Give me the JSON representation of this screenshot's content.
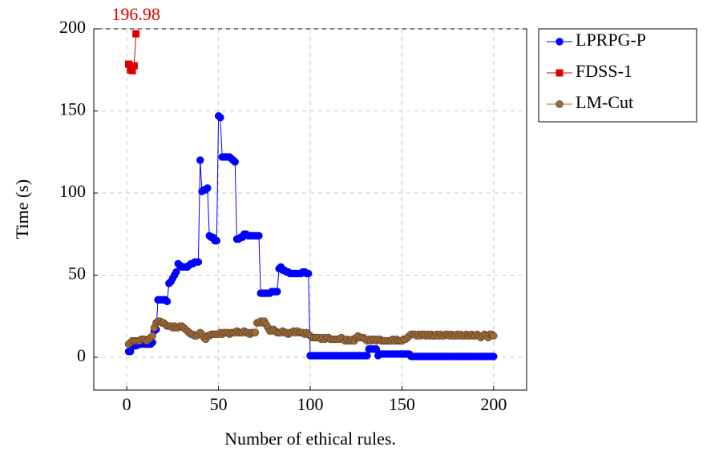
{
  "chart_data": {
    "type": "line",
    "xlabel": "Number of ethical rules.",
    "ylabel": "Time (s)",
    "xlim": [
      -18,
      218
    ],
    "ylim": [
      -20,
      200
    ],
    "xticks": [
      0,
      50,
      100,
      150,
      200
    ],
    "yticks": [
      0,
      50,
      100,
      150,
      200
    ],
    "grid": true,
    "legend": "outside right",
    "series": [
      {
        "name": "LPRPG-P",
        "color": "#0000ff",
        "marker": "circle",
        "x": [
          1,
          2,
          3,
          4,
          5,
          6,
          7,
          8,
          9,
          10,
          11,
          12,
          13,
          14,
          15,
          16,
          17,
          18,
          19,
          20,
          21,
          22,
          23,
          24,
          25,
          26,
          27,
          28,
          29,
          30,
          31,
          32,
          33,
          34,
          35,
          36,
          37,
          38,
          39,
          40,
          41,
          42,
          43,
          44,
          45,
          46,
          47,
          48,
          49,
          50,
          51,
          52,
          53,
          54,
          55,
          56,
          57,
          58,
          59,
          60,
          61,
          62,
          63,
          64,
          65,
          66,
          67,
          68,
          69,
          70,
          71,
          72,
          73,
          74,
          75,
          76,
          77,
          78,
          79,
          80,
          81,
          82,
          83,
          84,
          85,
          86,
          87,
          88,
          89,
          90,
          91,
          92,
          93,
          94,
          95,
          96,
          97,
          98,
          99,
          100,
          101,
          102,
          103,
          104,
          105,
          106,
          107,
          108,
          109,
          110,
          111,
          112,
          113,
          114,
          115,
          116,
          117,
          118,
          119,
          120,
          121,
          122,
          123,
          124,
          125,
          126,
          127,
          128,
          129,
          130,
          131,
          132,
          133,
          134,
          135,
          136,
          137,
          138,
          139,
          140,
          141,
          142,
          143,
          144,
          145,
          146,
          147,
          148,
          149,
          150,
          151,
          152,
          153,
          154,
          155,
          156,
          157,
          158,
          159,
          160,
          161,
          162,
          163,
          164,
          165,
          166,
          167,
          168,
          169,
          170,
          171,
          172,
          173,
          174,
          175,
          176,
          177,
          178,
          179,
          180,
          181,
          182,
          183,
          184,
          185,
          186,
          187,
          188,
          189,
          190,
          191,
          192,
          193,
          194,
          195,
          196,
          197,
          198,
          199,
          200
        ],
        "values": [
          3.5,
          3.5,
          7,
          7,
          7,
          7.5,
          8,
          8,
          8,
          8,
          8,
          8,
          8,
          9,
          16,
          17,
          35,
          35,
          35,
          35,
          35,
          34,
          45,
          46,
          48,
          50,
          52,
          57,
          56,
          55,
          55,
          55,
          55,
          56,
          57,
          57,
          58,
          58,
          58,
          120,
          101,
          102,
          102,
          103,
          74,
          73,
          73,
          71,
          71,
          147,
          146,
          122,
          122,
          122,
          122,
          122,
          121,
          120,
          119,
          72,
          72,
          73,
          73,
          75,
          75,
          74,
          74,
          74,
          74,
          74,
          74,
          74,
          39,
          39,
          39,
          39,
          39,
          39,
          40,
          40,
          40,
          40,
          54,
          55,
          53,
          53,
          52,
          52,
          51,
          51,
          51,
          51,
          51,
          51,
          51,
          52,
          52,
          51,
          51,
          1,
          1,
          1,
          1,
          1,
          1,
          1,
          1,
          1,
          1,
          1,
          1,
          1,
          1,
          1,
          1,
          1,
          1,
          1,
          1,
          1,
          1,
          1,
          1,
          1,
          1,
          1,
          1,
          1,
          1,
          1,
          1,
          5,
          5,
          5,
          5,
          5,
          1,
          2,
          2,
          2,
          2,
          2,
          2,
          2,
          2,
          2,
          2,
          2,
          2,
          2,
          2,
          2,
          2,
          2,
          0.5,
          0.5,
          0.5,
          0.5,
          0.5,
          0.5,
          0.5,
          0.5,
          0.5,
          0.5,
          0.5,
          0.5,
          0.5,
          0.5,
          0.5,
          0.5,
          0.5,
          0.5,
          0.5,
          0.5,
          0.5,
          0.5,
          0.5,
          0.5,
          0.5,
          0.5,
          0.5,
          0.5,
          0.5,
          0.5,
          0.5,
          0.5,
          0.5,
          0.5,
          0.5,
          0.5,
          0.5,
          0.5,
          0.5,
          0.5,
          0.5,
          0.5,
          0.5,
          0.5,
          0.5,
          0.5
        ]
      },
      {
        "name": "FDSS-1",
        "color": "#dd0000",
        "marker": "square",
        "x": [
          1,
          2,
          3,
          4,
          5
        ],
        "values": [
          178.5,
          175,
          174.5,
          177.5,
          196.98
        ]
      },
      {
        "name": "LM-Cut",
        "color": "#9c6b3c",
        "marker": "circle",
        "x": [
          1,
          2,
          3,
          4,
          5,
          6,
          7,
          8,
          9,
          10,
          11,
          12,
          13,
          14,
          15,
          16,
          17,
          18,
          19,
          20,
          21,
          22,
          23,
          24,
          25,
          26,
          27,
          28,
          29,
          30,
          31,
          32,
          33,
          34,
          35,
          36,
          37,
          38,
          39,
          40,
          41,
          42,
          43,
          44,
          45,
          46,
          47,
          48,
          49,
          50,
          51,
          52,
          53,
          54,
          55,
          56,
          57,
          58,
          59,
          60,
          61,
          62,
          63,
          64,
          65,
          66,
          67,
          68,
          69,
          70,
          71,
          72,
          73,
          74,
          75,
          76,
          77,
          78,
          79,
          80,
          81,
          82,
          83,
          84,
          85,
          86,
          87,
          88,
          89,
          90,
          91,
          92,
          93,
          94,
          95,
          96,
          97,
          98,
          99,
          100,
          101,
          102,
          103,
          104,
          105,
          106,
          107,
          108,
          109,
          110,
          111,
          112,
          113,
          114,
          115,
          116,
          117,
          118,
          119,
          120,
          121,
          122,
          123,
          124,
          125,
          126,
          127,
          128,
          129,
          130,
          131,
          132,
          133,
          134,
          135,
          136,
          137,
          138,
          139,
          140,
          141,
          142,
          143,
          144,
          145,
          146,
          147,
          148,
          149,
          150,
          151,
          152,
          153,
          154,
          155,
          156,
          157,
          158,
          159,
          160,
          161,
          162,
          163,
          164,
          165,
          166,
          167,
          168,
          169,
          170,
          171,
          172,
          173,
          174,
          175,
          176,
          177,
          178,
          179,
          180,
          181,
          182,
          183,
          184,
          185,
          186,
          187,
          188,
          189,
          190,
          191,
          192,
          193,
          194,
          195,
          196,
          197,
          198,
          199,
          200
        ],
        "values": [
          8,
          9,
          10,
          10,
          10,
          10,
          10,
          11,
          11,
          11,
          10,
          11,
          12,
          13,
          18,
          21,
          22,
          22,
          21,
          21,
          20,
          19,
          19,
          19,
          18,
          19,
          18,
          18,
          19,
          19,
          18,
          17,
          16,
          15,
          14,
          14,
          13,
          13,
          14,
          15,
          14,
          12,
          11,
          13,
          13,
          14,
          14,
          14,
          14,
          14,
          15,
          14,
          15,
          15,
          15,
          14,
          15,
          15,
          15,
          16,
          15,
          15,
          15,
          16,
          15,
          15,
          14,
          15,
          15,
          15,
          21,
          21,
          22,
          21,
          22,
          20,
          18,
          16,
          16,
          17,
          16,
          15,
          15,
          15,
          16,
          15,
          15,
          14,
          15,
          15,
          16,
          15,
          16,
          15,
          15,
          15,
          14,
          15,
          14,
          13,
          12,
          12,
          12,
          12,
          12,
          11,
          12,
          11,
          12,
          12,
          11,
          11,
          11,
          11,
          11,
          11,
          12,
          11,
          10,
          11,
          10,
          10,
          11,
          10,
          12,
          13,
          12,
          12,
          12,
          11,
          10,
          11,
          10,
          11,
          11,
          10,
          11,
          11,
          10,
          10,
          10,
          10,
          10,
          10,
          11,
          10,
          11,
          10,
          10,
          10,
          11,
          11,
          12,
          13,
          14,
          14,
          14,
          13,
          14,
          13,
          14,
          14,
          13,
          14,
          13,
          14,
          13,
          13,
          14,
          13,
          14,
          13,
          13,
          14,
          14,
          13,
          14,
          13,
          13,
          14,
          13,
          14,
          13,
          13,
          14,
          13,
          13,
          14,
          13,
          13,
          14,
          13,
          12,
          13,
          14,
          13,
          12,
          14,
          14,
          13
        ]
      }
    ]
  }
}
